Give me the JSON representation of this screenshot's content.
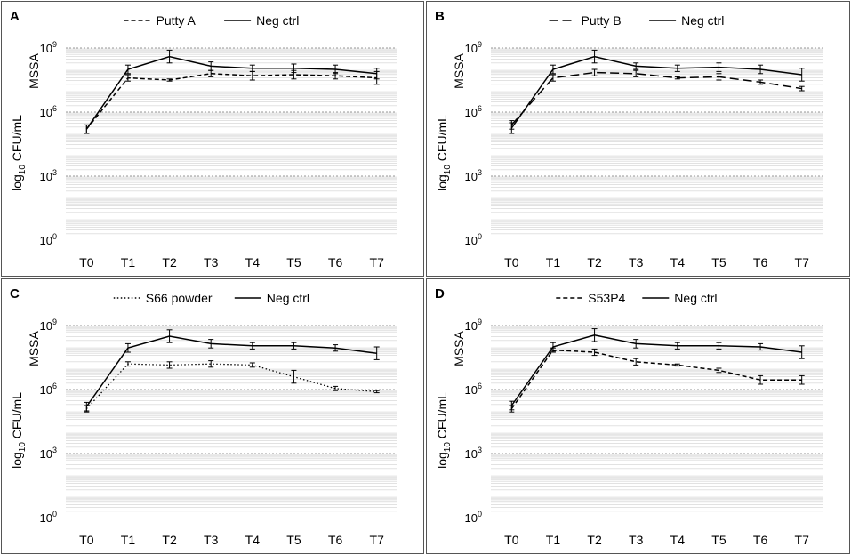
{
  "chart_data": [
    {
      "type": "line",
      "panel_label": "A",
      "ylabel": "log10 CFU/mL",
      "ylabel_parts": [
        "log",
        "10",
        " CFU/mL"
      ],
      "yaxis_note": "MSSA",
      "yscale": "log10",
      "ylim_exp": [
        0,
        9
      ],
      "yticks": [
        {
          "base": "10",
          "exp": "9",
          "value_exp": 9
        },
        {
          "base": "10",
          "exp": "6",
          "value_exp": 6
        },
        {
          "base": "10",
          "exp": "3",
          "value_exp": 3
        },
        {
          "base": "10",
          "exp": "0",
          "value_exp": 0
        }
      ],
      "categories": [
        "T0",
        "T1",
        "T2",
        "T3",
        "T4",
        "T5",
        "T6",
        "T7"
      ],
      "legend_position": "top",
      "series": [
        {
          "name": "Putty A",
          "style": "dashed",
          "log_values": [
            5.2,
            7.6,
            7.5,
            7.8,
            7.7,
            7.75,
            7.7,
            7.6
          ],
          "log_error": [
            0.2,
            0.15,
            0.05,
            0.15,
            0.2,
            0.2,
            0.15,
            0.3
          ]
        },
        {
          "name": "Neg ctrl",
          "style": "solid",
          "log_values": [
            5.2,
            8.0,
            8.6,
            8.15,
            8.05,
            8.05,
            8.0,
            7.8
          ],
          "log_error": [
            0.2,
            0.2,
            0.3,
            0.2,
            0.15,
            0.2,
            0.2,
            0.25
          ]
        }
      ]
    },
    {
      "type": "line",
      "panel_label": "B",
      "ylabel": "log10 CFU/mL",
      "ylabel_parts": [
        "log",
        "10",
        " CFU/mL"
      ],
      "yaxis_note": "MSSA",
      "yscale": "log10",
      "ylim_exp": [
        0,
        9
      ],
      "yticks": [
        {
          "base": "10",
          "exp": "9",
          "value_exp": 9
        },
        {
          "base": "10",
          "exp": "6",
          "value_exp": 6
        },
        {
          "base": "10",
          "exp": "3",
          "value_exp": 3
        },
        {
          "base": "10",
          "exp": "0",
          "value_exp": 0
        }
      ],
      "categories": [
        "T0",
        "T1",
        "T2",
        "T3",
        "T4",
        "T5",
        "T6",
        "T7"
      ],
      "legend_position": "top",
      "series": [
        {
          "name": "Putty B",
          "style": "longdash",
          "log_values": [
            5.4,
            7.6,
            7.85,
            7.8,
            7.6,
            7.65,
            7.4,
            7.1
          ],
          "log_error": [
            0.2,
            0.15,
            0.15,
            0.15,
            0.05,
            0.15,
            0.1,
            0.1
          ]
        },
        {
          "name": "Neg ctrl",
          "style": "solid",
          "log_values": [
            5.25,
            8.0,
            8.6,
            8.15,
            8.05,
            8.1,
            8.0,
            7.75
          ],
          "log_error": [
            0.25,
            0.2,
            0.3,
            0.15,
            0.15,
            0.2,
            0.2,
            0.3
          ]
        }
      ]
    },
    {
      "type": "line",
      "panel_label": "C",
      "ylabel": "log10 CFU/mL",
      "ylabel_parts": [
        "log",
        "10",
        " CFU/mL"
      ],
      "yaxis_note": "MSSA",
      "yscale": "log10",
      "ylim_exp": [
        0,
        9
      ],
      "yticks": [
        {
          "base": "10",
          "exp": "9",
          "value_exp": 9
        },
        {
          "base": "10",
          "exp": "6",
          "value_exp": 6
        },
        {
          "base": "10",
          "exp": "3",
          "value_exp": 3
        },
        {
          "base": "10",
          "exp": "0",
          "value_exp": 0
        }
      ],
      "categories": [
        "T0",
        "T1",
        "T2",
        "T3",
        "T4",
        "T5",
        "T6",
        "T7"
      ],
      "legend_position": "top",
      "series": [
        {
          "name": "S66 powder",
          "style": "dotted",
          "log_values": [
            5.1,
            7.2,
            7.15,
            7.2,
            7.15,
            6.6,
            6.05,
            5.9
          ],
          "log_error": [
            0.15,
            0.1,
            0.15,
            0.15,
            0.1,
            0.3,
            0.1,
            0.05
          ]
        },
        {
          "name": "Neg ctrl",
          "style": "solid",
          "log_values": [
            5.2,
            7.95,
            8.5,
            8.15,
            8.05,
            8.05,
            7.95,
            7.7
          ],
          "log_error": [
            0.2,
            0.2,
            0.3,
            0.2,
            0.15,
            0.15,
            0.15,
            0.3
          ]
        }
      ]
    },
    {
      "type": "line",
      "panel_label": "D",
      "ylabel": "log10 CFU/mL",
      "ylabel_parts": [
        "log",
        "10",
        " CFU/mL"
      ],
      "yaxis_note": "MSSA",
      "yscale": "log10",
      "ylim_exp": [
        0,
        9
      ],
      "yticks": [
        {
          "base": "10",
          "exp": "9",
          "value_exp": 9
        },
        {
          "base": "10",
          "exp": "6",
          "value_exp": 6
        },
        {
          "base": "10",
          "exp": "3",
          "value_exp": 3
        },
        {
          "base": "10",
          "exp": "0",
          "value_exp": 0
        }
      ],
      "categories": [
        "T0",
        "T1",
        "T2",
        "T3",
        "T4",
        "T5",
        "T6",
        "T7"
      ],
      "legend_position": "top",
      "series": [
        {
          "name": "S53P4",
          "style": "dashed",
          "log_values": [
            5.1,
            7.85,
            7.75,
            7.3,
            7.15,
            6.9,
            6.45,
            6.45
          ],
          "log_error": [
            0.15,
            0.1,
            0.15,
            0.15,
            0.05,
            0.1,
            0.2,
            0.2
          ]
        },
        {
          "name": "Neg ctrl",
          "style": "solid",
          "log_values": [
            5.25,
            8.0,
            8.55,
            8.15,
            8.05,
            8.05,
            8.0,
            7.75
          ],
          "log_error": [
            0.2,
            0.2,
            0.3,
            0.2,
            0.15,
            0.15,
            0.15,
            0.3
          ]
        }
      ]
    }
  ]
}
